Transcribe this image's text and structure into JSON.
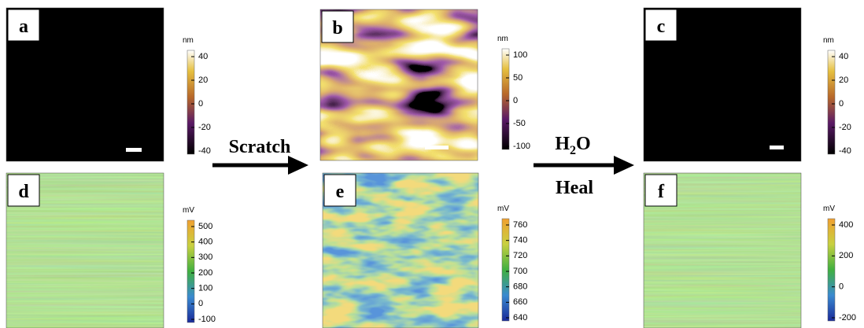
{
  "panels": [
    {
      "label": "a",
      "unit": "nm",
      "ticks": [
        "40",
        "20",
        "0",
        "-20",
        "-40"
      ]
    },
    {
      "label": "b",
      "unit": "nm",
      "ticks": [
        "100",
        "50",
        "0",
        "-50",
        "-100"
      ]
    },
    {
      "label": "c",
      "unit": "nm",
      "ticks": [
        "40",
        "20",
        "0",
        "-20",
        "-40"
      ]
    },
    {
      "label": "d",
      "unit": "mV",
      "ticks": [
        "500",
        "400",
        "300",
        "200",
        "100",
        "0",
        "-100"
      ]
    },
    {
      "label": "e",
      "unit": "mV",
      "ticks": [
        "760",
        "740",
        "720",
        "700",
        "680",
        "660",
        "640"
      ]
    },
    {
      "label": "f",
      "unit": "mV",
      "ticks": [
        "400",
        "200",
        "0",
        "-200"
      ]
    }
  ],
  "arrows": {
    "scratch": "Scratch",
    "water": {
      "h": "H",
      "sub": "2",
      "o": "O"
    },
    "heal": "Heal"
  }
}
